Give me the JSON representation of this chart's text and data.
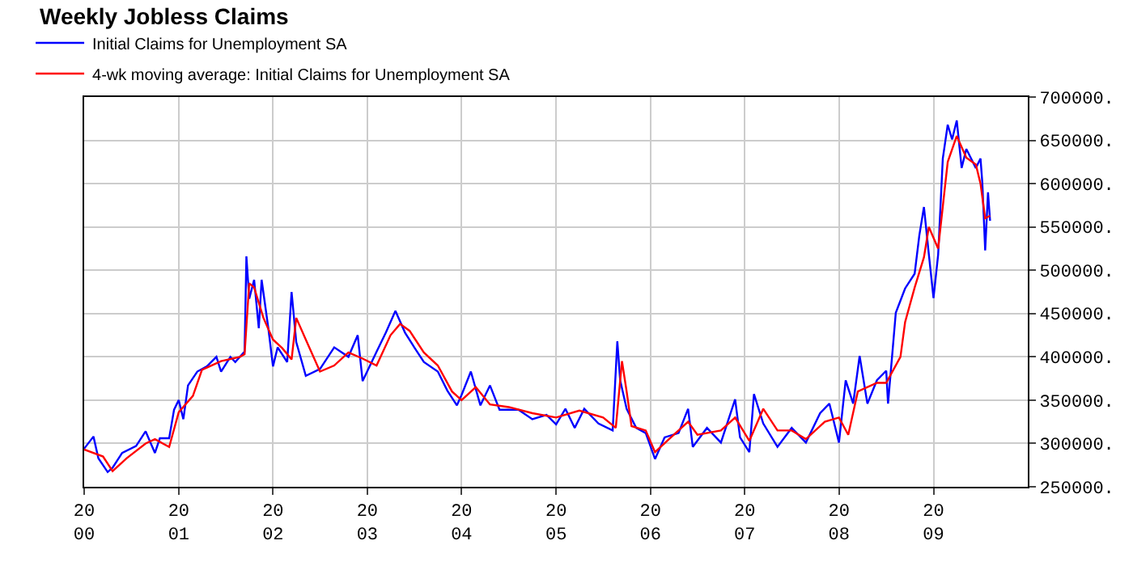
{
  "chart_data": {
    "type": "line",
    "title": "Weekly Jobless Claims",
    "legend": "top left",
    "grid": true,
    "marker": "none",
    "line_style": "solid",
    "xlim": [
      "2000-01-01",
      "2010-01-01"
    ],
    "xticks": [
      {
        "value": "2000-01-01",
        "label": "20\n00"
      },
      {
        "value": "2001-01-01",
        "label": "20\n01"
      },
      {
        "value": "2002-01-01",
        "label": "20\n02"
      },
      {
        "value": "2003-01-01",
        "label": "20\n03"
      },
      {
        "value": "2004-01-01",
        "label": "20\n04"
      },
      {
        "value": "2005-01-01",
        "label": "20\n05"
      },
      {
        "value": "2006-01-01",
        "label": "20\n06"
      },
      {
        "value": "2007-01-01",
        "label": "20\n07"
      },
      {
        "value": "2008-01-01",
        "label": "20\n08"
      },
      {
        "value": "2009-01-01",
        "label": "20\n09"
      }
    ],
    "ylim": [
      250000,
      700000
    ],
    "yticks": [
      {
        "value": 250000,
        "label": "250000."
      },
      {
        "value": 300000,
        "label": "300000."
      },
      {
        "value": 350000,
        "label": "350000."
      },
      {
        "value": 400000,
        "label": "400000."
      },
      {
        "value": 450000,
        "label": "450000."
      },
      {
        "value": 500000,
        "label": "500000."
      },
      {
        "value": 550000,
        "label": "550000."
      },
      {
        "value": 600000,
        "label": "600000."
      },
      {
        "value": 650000,
        "label": "650000."
      },
      {
        "value": 700000,
        "label": "700000."
      }
    ],
    "series": [
      {
        "name": "Initial Claims for Unemployment SA",
        "color": "#0000ff",
        "x": [
          "2000-01-01",
          "2000-02-06",
          "2000-02-25",
          "2000-04-01",
          "2000-04-20",
          "2000-05-27",
          "2000-07-20",
          "2000-08-26",
          "2000-10-01",
          "2000-10-20",
          "2000-11-25",
          "2000-12-14",
          "2001-01-01",
          "2001-01-19",
          "2001-02-06",
          "2001-03-14",
          "2001-04-20",
          "2001-05-27",
          "2001-06-14",
          "2001-07-20",
          "2001-08-08",
          "2001-09-13",
          "2001-09-20",
          "2001-10-01",
          "2001-10-20",
          "2001-11-07",
          "2001-11-18",
          "2001-12-14",
          "2002-01-01",
          "2002-01-19",
          "2002-02-25",
          "2002-03-14",
          "2002-04-01",
          "2002-05-08",
          "2002-07-02",
          "2002-08-26",
          "2002-10-20",
          "2002-11-25",
          "2002-12-14",
          "2003-02-06",
          "2003-03-14",
          "2003-04-20",
          "2003-05-27",
          "2003-07-02",
          "2003-08-08",
          "2003-10-01",
          "2003-11-07",
          "2003-12-14",
          "2004-01-01",
          "2004-02-06",
          "2004-03-14",
          "2004-04-20",
          "2004-05-27",
          "2004-08-08",
          "2004-10-01",
          "2004-11-25",
          "2005-01-01",
          "2005-02-06",
          "2005-03-14",
          "2005-04-20",
          "2005-06-14",
          "2005-08-08",
          "2005-08-26",
          "2005-09-06",
          "2005-10-01",
          "2005-11-07",
          "2005-12-14",
          "2006-01-19",
          "2006-02-25",
          "2006-04-20",
          "2006-05-27",
          "2006-06-14",
          "2006-08-08",
          "2006-10-01",
          "2006-11-25",
          "2006-12-14",
          "2007-01-19",
          "2007-02-06",
          "2007-03-14",
          "2007-05-08",
          "2007-07-02",
          "2007-08-26",
          "2007-10-20",
          "2007-11-25",
          "2008-01-01",
          "2008-01-27",
          "2008-02-25",
          "2008-03-21",
          "2008-04-20",
          "2008-05-27",
          "2008-07-02",
          "2008-07-09",
          "2008-08-08",
          "2008-09-13",
          "2008-10-20",
          "2008-11-07",
          "2008-11-25",
          "2008-12-14",
          "2009-01-01",
          "2009-01-19",
          "2009-02-06",
          "2009-02-25",
          "2009-03-14",
          "2009-04-01",
          "2009-04-20",
          "2009-05-08",
          "2009-06-14",
          "2009-07-02",
          "2009-07-09",
          "2009-07-20",
          "2009-07-31",
          "2009-08-08"
        ],
        "values": [
          294000,
          308000,
          283000,
          267000,
          272000,
          289000,
          297000,
          314000,
          289000,
          306000,
          306000,
          339000,
          350000,
          328000,
          367000,
          383000,
          389000,
          400000,
          383000,
          400000,
          394000,
          406000,
          516000,
          467000,
          489000,
          433000,
          489000,
          433000,
          389000,
          411000,
          394000,
          475000,
          417000,
          378000,
          386000,
          411000,
          400000,
          425000,
          372000,
          406000,
          428000,
          453000,
          428000,
          411000,
          394000,
          383000,
          361000,
          344000,
          356000,
          383000,
          344000,
          367000,
          339000,
          339000,
          328000,
          333000,
          322000,
          340000,
          318000,
          340000,
          323000,
          315000,
          418000,
          373000,
          340000,
          318000,
          312000,
          282000,
          307000,
          312000,
          340000,
          296000,
          318000,
          301000,
          351000,
          307000,
          290000,
          357000,
          323000,
          296000,
          318000,
          301000,
          335000,
          346000,
          301000,
          373000,
          346000,
          401000,
          346000,
          373000,
          384000,
          346000,
          451000,
          479000,
          496000,
          540000,
          573000,
          518000,
          468000,
          518000,
          629000,
          668000,
          651000,
          673000,
          618000,
          640000,
          618000,
          629000,
          601000,
          523000,
          590000,
          557000
        ]
      },
      {
        "name": "4-wk moving average: Initial Claims for Unemployment SA",
        "color": "#ff0000",
        "x": [
          "2000-01-01",
          "2000-03-14",
          "2000-04-20",
          "2000-06-14",
          "2000-08-26",
          "2000-10-01",
          "2000-11-25",
          "2001-01-01",
          "2001-02-25",
          "2001-04-01",
          "2001-06-14",
          "2001-08-26",
          "2001-09-13",
          "2001-10-01",
          "2001-10-20",
          "2001-11-25",
          "2002-01-01",
          "2002-02-06",
          "2002-03-14",
          "2002-04-01",
          "2002-05-08",
          "2002-07-02",
          "2002-08-26",
          "2002-10-20",
          "2002-12-14",
          "2003-02-06",
          "2003-04-01",
          "2003-05-08",
          "2003-06-14",
          "2003-08-08",
          "2003-10-01",
          "2003-11-25",
          "2004-01-01",
          "2004-02-25",
          "2004-04-20",
          "2004-07-02",
          "2004-10-01",
          "2005-01-01",
          "2005-04-01",
          "2005-07-02",
          "2005-08-20",
          "2005-09-13",
          "2005-10-01",
          "2005-10-20",
          "2005-12-14",
          "2006-01-19",
          "2006-03-14",
          "2006-05-27",
          "2006-07-02",
          "2006-10-01",
          "2006-11-25",
          "2007-01-19",
          "2007-03-14",
          "2007-05-08",
          "2007-07-02",
          "2007-08-26",
          "2007-11-07",
          "2008-01-01",
          "2008-02-06",
          "2008-03-14",
          "2008-05-27",
          "2008-07-02",
          "2008-08-26",
          "2008-09-13",
          "2008-10-20",
          "2008-11-25",
          "2008-12-14",
          "2009-01-19",
          "2009-02-25",
          "2009-04-01",
          "2009-05-08",
          "2009-06-14",
          "2009-07-02",
          "2009-07-20",
          "2009-08-08"
        ],
        "values": [
          293000,
          285000,
          268000,
          283000,
          300000,
          305000,
          296000,
          336000,
          355000,
          385000,
          395000,
          400000,
          403000,
          485000,
          480000,
          445000,
          420000,
          410000,
          397000,
          445000,
          420000,
          383000,
          390000,
          405000,
          398000,
          390000,
          425000,
          438000,
          430000,
          405000,
          390000,
          360000,
          350000,
          365000,
          345000,
          342000,
          335000,
          330000,
          338000,
          330000,
          318000,
          395000,
          360000,
          320000,
          315000,
          290000,
          305000,
          325000,
          310000,
          315000,
          330000,
          303000,
          340000,
          315000,
          315000,
          305000,
          325000,
          330000,
          310000,
          360000,
          370000,
          370000,
          400000,
          440000,
          480000,
          515000,
          550000,
          525000,
          625000,
          655000,
          630000,
          622000,
          600000,
          560000,
          563000
        ]
      }
    ]
  }
}
